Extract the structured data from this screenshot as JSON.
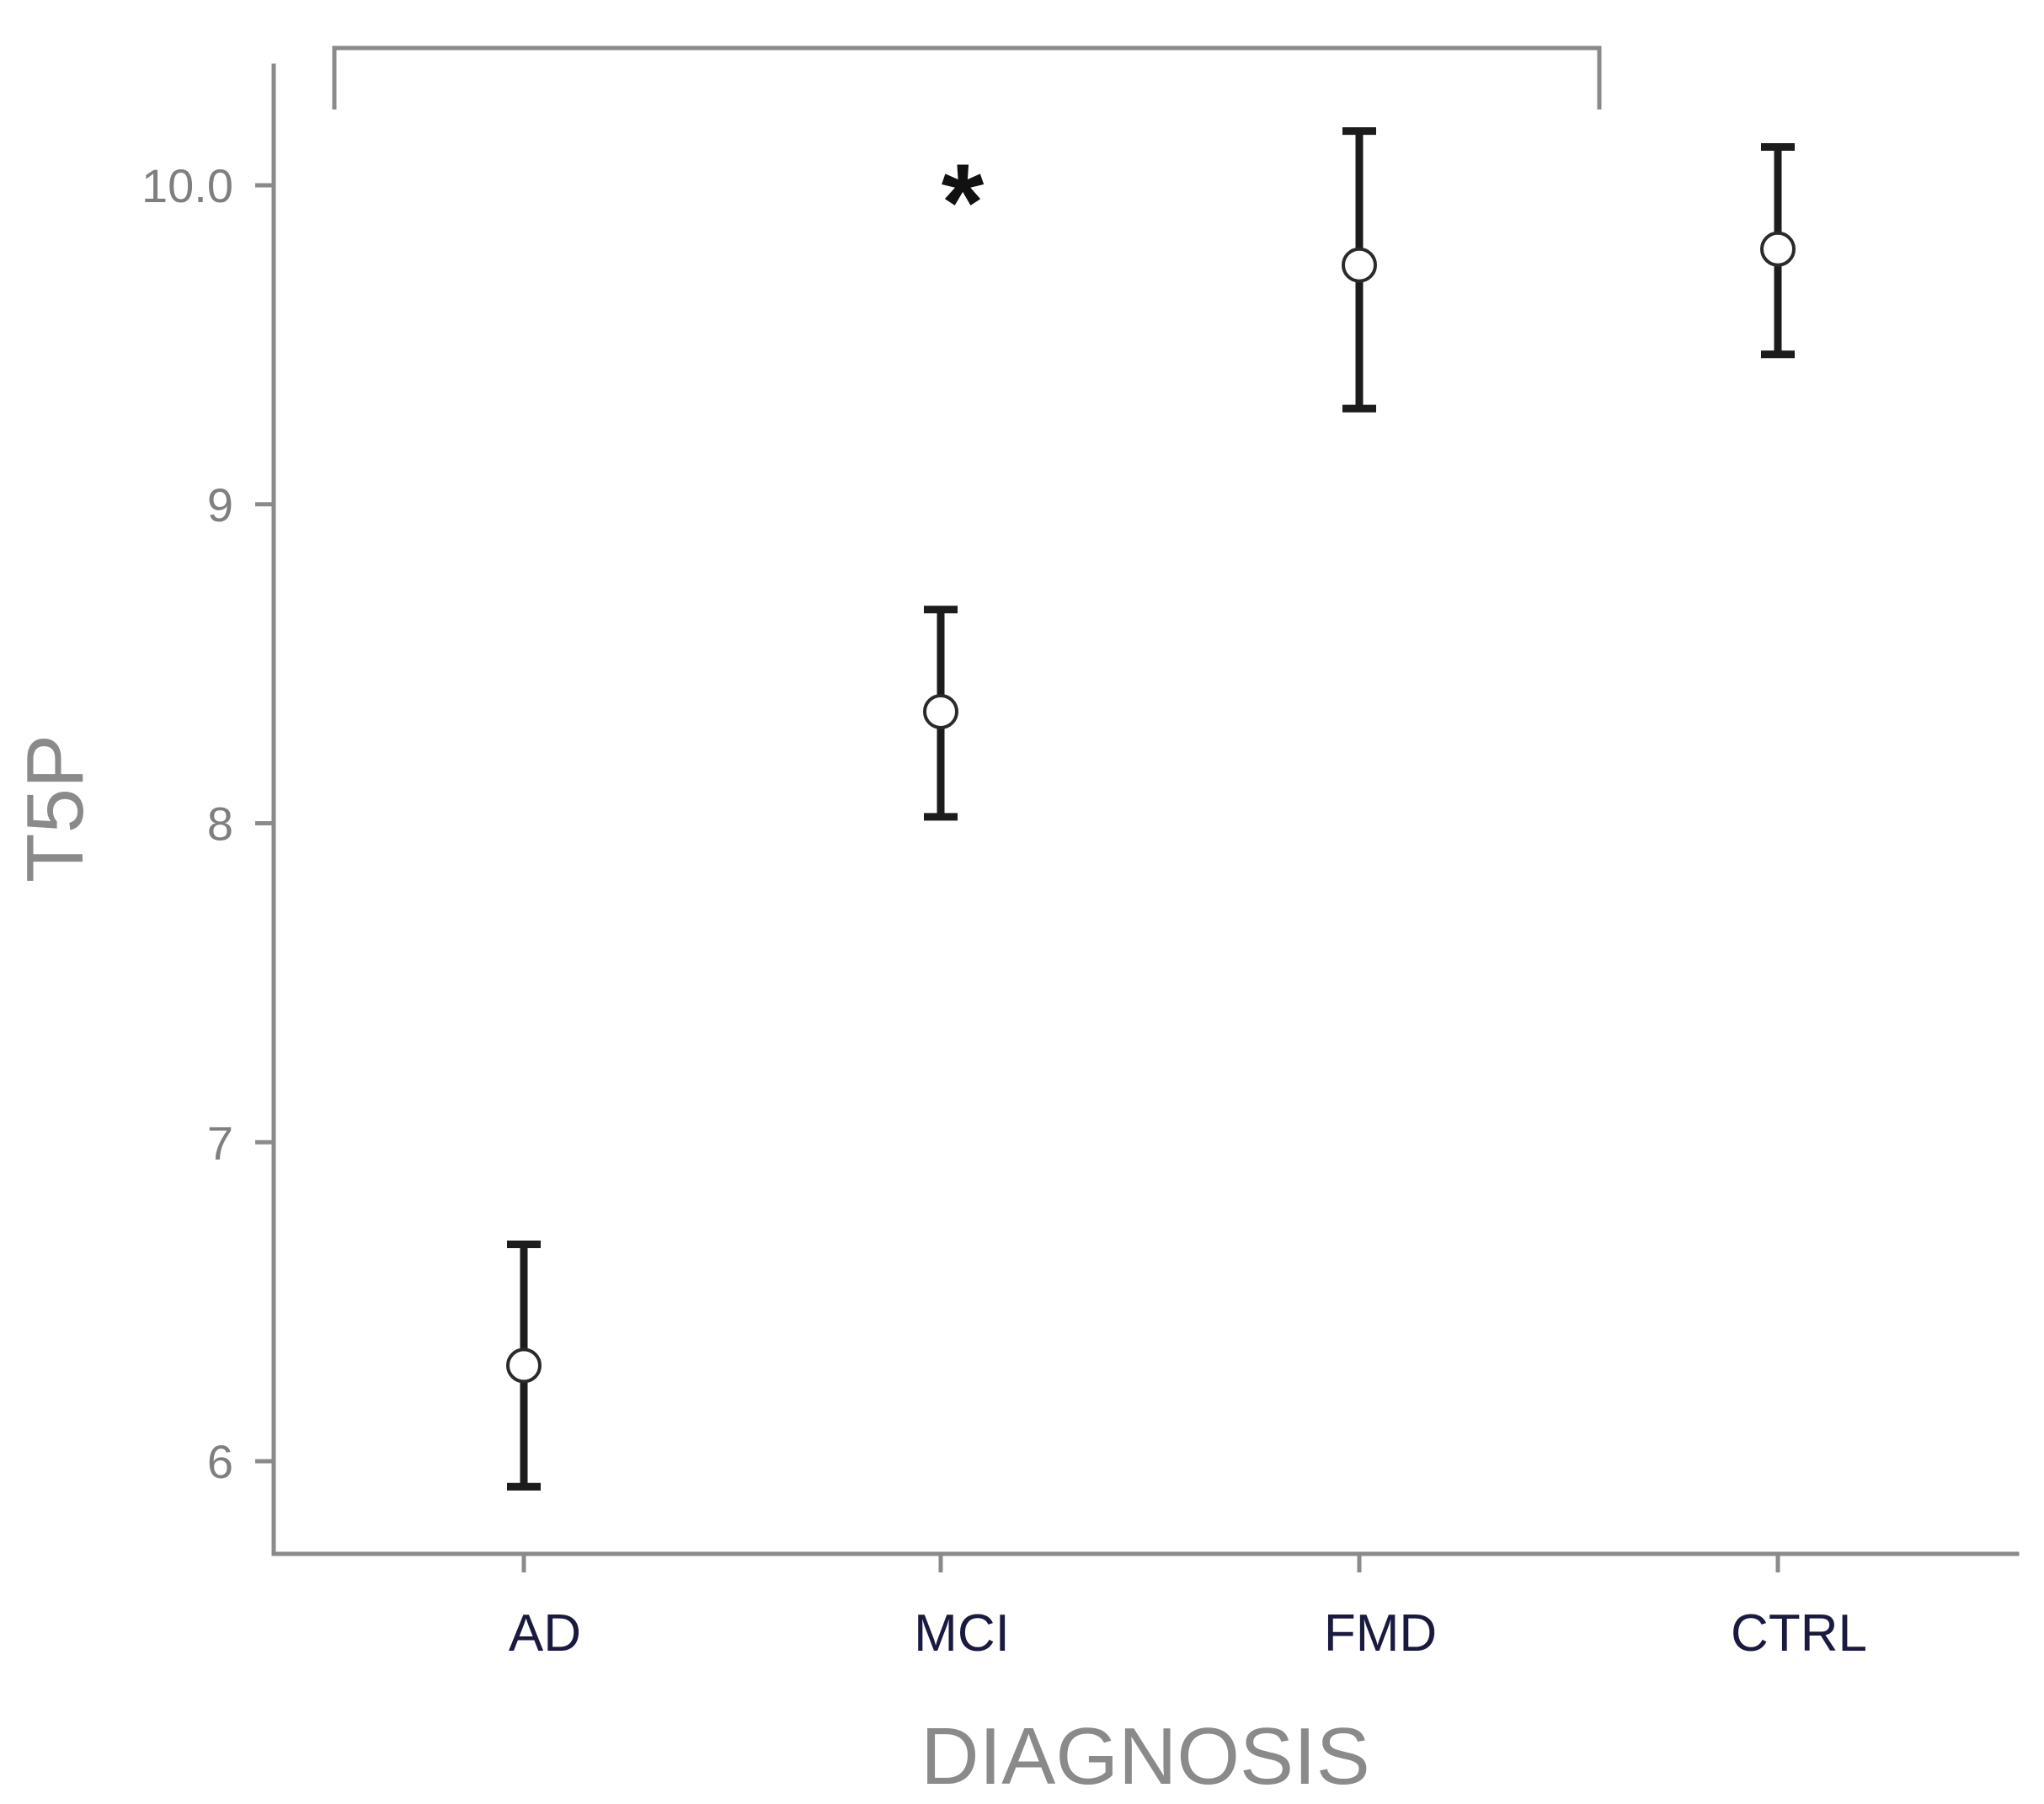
{
  "chart_data": {
    "type": "scatter",
    "subtype": "error-bar",
    "title": "",
    "xlabel": "DIAGNOSIS",
    "ylabel": "T5P",
    "categories": [
      "AD",
      "MCI",
      "FMD",
      "CTRL"
    ],
    "means": [
      6.3,
      8.35,
      9.75,
      9.8
    ],
    "error_low": [
      5.92,
      8.02,
      9.3,
      9.47
    ],
    "error_high": [
      6.68,
      8.67,
      10.17,
      10.12
    ],
    "ylim": [
      5.7,
      10.4
    ],
    "yticks": [
      6,
      7,
      8,
      9,
      10
    ],
    "ytick_labels": [
      "6",
      "7",
      "8",
      "9",
      "10.0"
    ],
    "grid": false,
    "legend": "none",
    "annotations": [
      {
        "text": "*",
        "kind": "significance-bracket",
        "from_category": "AD",
        "to_category": "FMD"
      }
    ],
    "colors": {
      "axis": "#8a8a8a",
      "errorbar": "#1c1c1c",
      "marker_fill": "#ffffff",
      "xtick_text": "#1a1a40"
    }
  }
}
